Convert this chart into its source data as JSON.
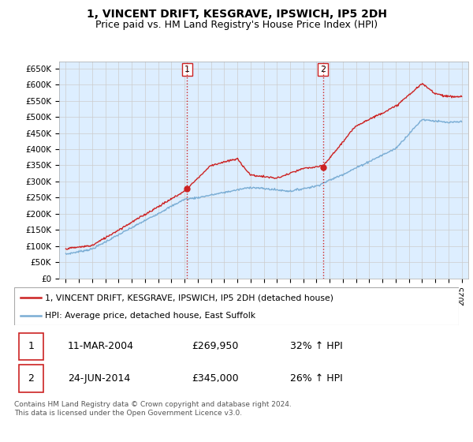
{
  "title": "1, VINCENT DRIFT, KESGRAVE, IPSWICH, IP5 2DH",
  "subtitle": "Price paid vs. HM Land Registry's House Price Index (HPI)",
  "ylim": [
    0,
    670000
  ],
  "yticks": [
    0,
    50000,
    100000,
    150000,
    200000,
    250000,
    300000,
    350000,
    400000,
    450000,
    500000,
    550000,
    600000,
    650000
  ],
  "ytick_labels": [
    "£0",
    "£50K",
    "£100K",
    "£150K",
    "£200K",
    "£250K",
    "£300K",
    "£350K",
    "£400K",
    "£450K",
    "£500K",
    "£550K",
    "£600K",
    "£650K"
  ],
  "hpi_color": "#7aadd4",
  "price_color": "#cc2222",
  "vline_color": "#cc2222",
  "grid_color": "#cccccc",
  "plot_bg": "#ddeeff",
  "legend_label_price": "1, VINCENT DRIFT, KESGRAVE, IPSWICH, IP5 2DH (detached house)",
  "legend_label_hpi": "HPI: Average price, detached house, East Suffolk",
  "sale1_date": "11-MAR-2004",
  "sale1_price": "£269,950",
  "sale1_hpi": "32% ↑ HPI",
  "sale1_year": 2004.2,
  "sale2_date": "24-JUN-2014",
  "sale2_price": "£345,000",
  "sale2_hpi": "26% ↑ HPI",
  "sale2_year": 2014.5,
  "footnote": "Contains HM Land Registry data © Crown copyright and database right 2024.\nThis data is licensed under the Open Government Licence v3.0.",
  "title_fontsize": 10,
  "subtitle_fontsize": 9,
  "xmin": 1994.5,
  "xmax": 2025.5
}
